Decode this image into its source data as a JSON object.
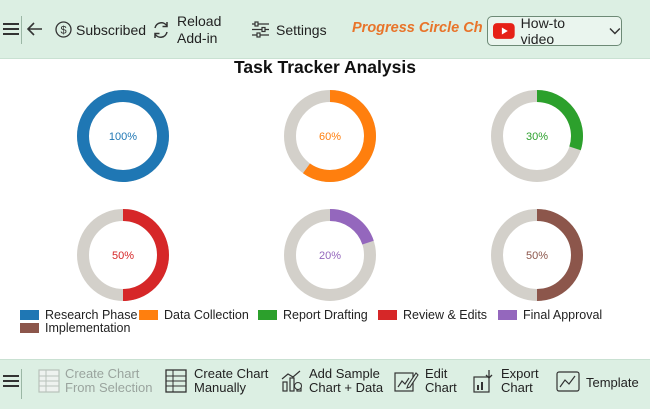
{
  "toolbar": {
    "subscribed_label": "Subscribed",
    "reload_label": "Reload\nAdd-in",
    "settings_label": "Settings",
    "addin_title": "Progress Circle Ch...",
    "howto_label": "How-to video"
  },
  "chart_data": {
    "type": "pie",
    "title": "Task Tracker Analysis",
    "series": [
      {
        "name": "Research Phase",
        "value": 100,
        "label": "100%",
        "color": "#1f77b4"
      },
      {
        "name": "Data Collection",
        "value": 60,
        "label": "60%",
        "color": "#ff7f0e"
      },
      {
        "name": "Report Drafting",
        "value": 30,
        "label": "30%",
        "color": "#2ca02c"
      },
      {
        "name": "Review & Edits",
        "value": 50,
        "label": "50%",
        "color": "#d62728"
      },
      {
        "name": "Final Approval",
        "value": 20,
        "label": "20%",
        "color": "#9467bd"
      },
      {
        "name": "Implementation",
        "value": 50,
        "label": "50%",
        "color": "#8c564b"
      }
    ],
    "track_color": "#d3d0ca",
    "legend_position": "bottom"
  },
  "bottombar": {
    "create_from_selection": "Create Chart\nFrom Selection",
    "create_manually": "Create Chart\nManually",
    "add_sample": "Add Sample\nChart + Data",
    "edit_chart": "Edit\nChart",
    "export_chart": "Export\nChart",
    "template": "Template"
  }
}
